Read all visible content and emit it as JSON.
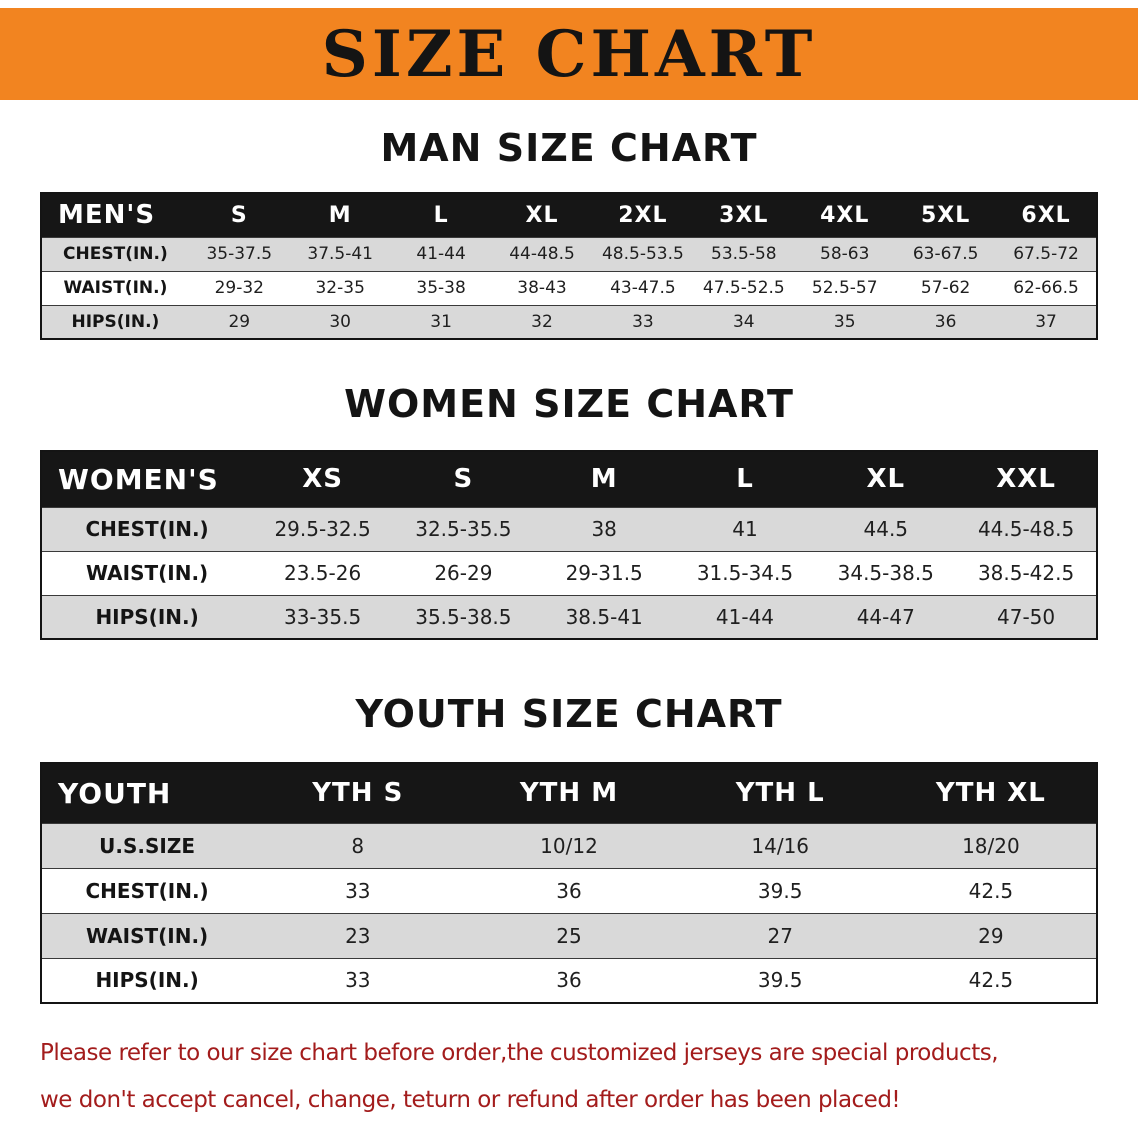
{
  "banner": {
    "title": "SIZE CHART"
  },
  "colors": {
    "banner_bg": "#F28420",
    "table_header_bg": "#161616",
    "row_alt_gray": "#D9D9D9",
    "notice_text": "#A31C1C"
  },
  "sections": [
    {
      "id": "men",
      "heading": "MAN SIZE CHART",
      "table": {
        "header": [
          "MEN'S",
          "S",
          "M",
          "L",
          "XL",
          "2XL",
          "3XL",
          "4XL",
          "5XL",
          "6XL"
        ],
        "rows": [
          [
            "CHEST(IN.)",
            "35-37.5",
            "37.5-41",
            "41-44",
            "44-48.5",
            "48.5-53.5",
            "53.5-58",
            "58-63",
            "63-67.5",
            "67.5-72"
          ],
          [
            "WAIST(IN.)",
            "29-32",
            "32-35",
            "35-38",
            "38-43",
            "43-47.5",
            "47.5-52.5",
            "52.5-57",
            "57-62",
            "62-66.5"
          ],
          [
            "HIPS(IN.)",
            "29",
            "30",
            "31",
            "32",
            "33",
            "34",
            "35",
            "36",
            "37"
          ]
        ]
      }
    },
    {
      "id": "women",
      "heading": "WOMEN SIZE CHART",
      "table": {
        "header": [
          "WOMEN'S",
          "XS",
          "S",
          "M",
          "L",
          "XL",
          "XXL"
        ],
        "rows": [
          [
            "CHEST(IN.)",
            "29.5-32.5",
            "32.5-35.5",
            "38",
            "41",
            "44.5",
            "44.5-48.5"
          ],
          [
            "WAIST(IN.)",
            "23.5-26",
            "26-29",
            "29-31.5",
            "31.5-34.5",
            "34.5-38.5",
            "38.5-42.5"
          ],
          [
            "HIPS(IN.)",
            "33-35.5",
            "35.5-38.5",
            "38.5-41",
            "41-44",
            "44-47",
            "47-50"
          ]
        ]
      }
    },
    {
      "id": "youth",
      "heading": "YOUTH SIZE CHART",
      "table": {
        "header": [
          "YOUTH",
          "YTH S",
          "YTH M",
          "YTH L",
          "YTH XL"
        ],
        "rows": [
          [
            "U.S.SIZE",
            "8",
            "10/12",
            "14/16",
            "18/20"
          ],
          [
            "CHEST(IN.)",
            "33",
            "36",
            "39.5",
            "42.5"
          ],
          [
            "WAIST(IN.)",
            "23",
            "25",
            "27",
            "29"
          ],
          [
            "HIPS(IN.)",
            "33",
            "36",
            "39.5",
            "42.5"
          ]
        ]
      }
    }
  ],
  "notice": {
    "lines": [
      "Please refer to our size chart before order,the customized jerseys are special products,",
      "we don't accept cancel, change, teturn or refund after order has been placed!"
    ]
  }
}
